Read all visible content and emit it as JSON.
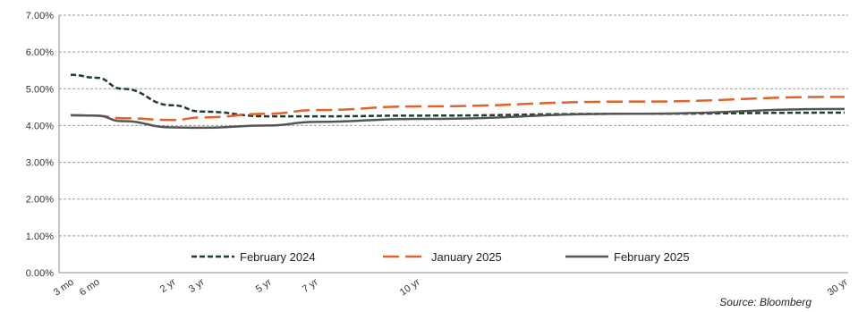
{
  "chart_data": {
    "type": "line",
    "title": "",
    "xlabel": "",
    "ylabel": "",
    "x_tick_labels": [
      "3 mo",
      "6 mo",
      "2 yr",
      "3 yr",
      "5 yr",
      "7 yr",
      "10 yr",
      "30 yr"
    ],
    "x_years": [
      0.25,
      0.5,
      2,
      3,
      5,
      7,
      10,
      30
    ],
    "y_tick_labels": [
      "0.00%",
      "1.00%",
      "2.00%",
      "3.00%",
      "4.00%",
      "5.00%",
      "6.00%",
      "7.00%"
    ],
    "ylim": [
      0,
      7
    ],
    "grid": true,
    "legend_position": "bottom",
    "series": [
      {
        "name": "February 2024",
        "color": "#1f3d2b",
        "dash": "dashed-short",
        "points": [
          [
            0.25,
            5.38
          ],
          [
            0.5,
            5.3
          ],
          [
            1,
            5.0
          ],
          [
            2,
            4.55
          ],
          [
            3,
            4.38
          ],
          [
            5,
            4.25
          ],
          [
            7,
            4.25
          ],
          [
            10,
            4.27
          ],
          [
            20,
            4.32
          ],
          [
            30,
            4.35
          ]
        ]
      },
      {
        "name": "January 2025",
        "color": "#e0622a",
        "dash": "dashed-long",
        "points": [
          [
            0.25,
            4.28
          ],
          [
            0.5,
            4.27
          ],
          [
            1,
            4.2
          ],
          [
            2,
            4.15
          ],
          [
            3,
            4.22
          ],
          [
            5,
            4.32
          ],
          [
            7,
            4.42
          ],
          [
            10,
            4.52
          ],
          [
            20,
            4.65
          ],
          [
            30,
            4.78
          ]
        ]
      },
      {
        "name": "February 2025",
        "color": "#555555",
        "dash": "solid",
        "points": [
          [
            0.25,
            4.28
          ],
          [
            0.5,
            4.27
          ],
          [
            1,
            4.12
          ],
          [
            2,
            3.95
          ],
          [
            3,
            3.94
          ],
          [
            5,
            4.0
          ],
          [
            7,
            4.1
          ],
          [
            10,
            4.18
          ],
          [
            20,
            4.32
          ],
          [
            30,
            4.45
          ]
        ]
      }
    ],
    "source": "Source: Bloomberg"
  }
}
